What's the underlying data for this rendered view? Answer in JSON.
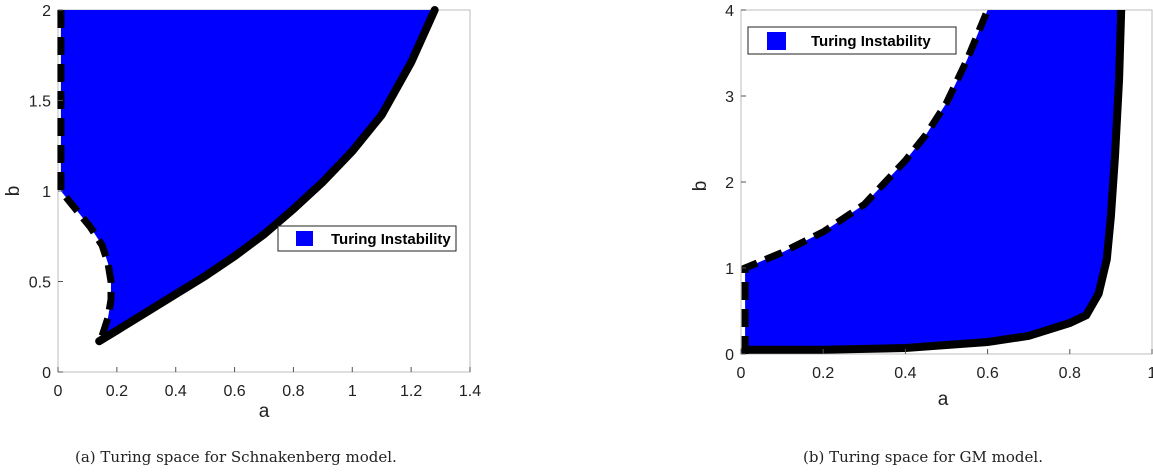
{
  "chart_data": [
    {
      "type": "area",
      "caption": "(a) Turing space for Schnakenberg model.",
      "xlabel": "a",
      "ylabel": "b",
      "xlim": [
        0,
        1.4
      ],
      "ylim": [
        0,
        2
      ],
      "x_ticks": [
        "0",
        "0.2",
        "0.4",
        "0.6",
        "0.8",
        "1",
        "1.2",
        "1.4"
      ],
      "y_ticks": [
        "0",
        "0.5",
        "1",
        "1.5",
        "2"
      ],
      "x_tick_values": [
        0,
        0.2,
        0.4,
        0.6,
        0.8,
        1.0,
        1.2,
        1.4
      ],
      "y_tick_values": [
        0,
        0.5,
        1.0,
        1.5,
        2.0
      ],
      "legend": {
        "label": "Turing Instability",
        "color": "#0000ff",
        "placement": "center-right"
      },
      "region_color": "#0000ff",
      "boundaries": [
        {
          "style": "dashed",
          "points": [
            [
              0.01,
              2.0
            ],
            [
              0.01,
              1.0
            ],
            [
              0.06,
              0.9
            ],
            [
              0.11,
              0.8
            ],
            [
              0.15,
              0.7
            ],
            [
              0.17,
              0.6
            ],
            [
              0.18,
              0.5
            ],
            [
              0.18,
              0.4
            ],
            [
              0.17,
              0.3
            ],
            [
              0.15,
              0.2
            ],
            [
              0.14,
              0.17
            ]
          ]
        },
        {
          "style": "solid",
          "points": [
            [
              0.14,
              0.17
            ],
            [
              0.2,
              0.23
            ],
            [
              0.3,
              0.33
            ],
            [
              0.4,
              0.43
            ],
            [
              0.5,
              0.53
            ],
            [
              0.6,
              0.64
            ],
            [
              0.7,
              0.76
            ],
            [
              0.8,
              0.9
            ],
            [
              0.9,
              1.05
            ],
            [
              1.0,
              1.22
            ],
            [
              1.1,
              1.42
            ],
            [
              1.2,
              1.71
            ],
            [
              1.28,
              2.0
            ]
          ]
        }
      ]
    },
    {
      "type": "area",
      "caption": "(b) Turing space for GM model.",
      "xlabel": "a",
      "ylabel": "b",
      "xlim": [
        0,
        1
      ],
      "ylim": [
        0,
        4
      ],
      "x_ticks": [
        "0",
        "0.2",
        "0.4",
        "0.6",
        "0.8",
        "1"
      ],
      "y_ticks": [
        "0",
        "1",
        "2",
        "3",
        "4"
      ],
      "x_tick_values": [
        0,
        0.2,
        0.4,
        0.6,
        0.8,
        1.0
      ],
      "y_tick_values": [
        0,
        1,
        2,
        3,
        4
      ],
      "legend": {
        "label": "Turing Instability",
        "color": "#0000ff",
        "placement": "top-left"
      },
      "region_color": "#0000ff",
      "boundaries": [
        {
          "style": "dashed",
          "points": [
            [
              0.01,
              0.0
            ],
            [
              0.01,
              1.0
            ],
            [
              0.1,
              1.18
            ],
            [
              0.2,
              1.42
            ],
            [
              0.3,
              1.74
            ],
            [
              0.4,
              2.25
            ],
            [
              0.45,
              2.55
            ],
            [
              0.5,
              2.92
            ],
            [
              0.55,
              3.42
            ],
            [
              0.6,
              4.0
            ]
          ]
        },
        {
          "style": "solid",
          "points": [
            [
              0.01,
              0.05
            ],
            [
              0.2,
              0.05
            ],
            [
              0.4,
              0.07
            ],
            [
              0.6,
              0.14
            ],
            [
              0.7,
              0.21
            ],
            [
              0.8,
              0.36
            ],
            [
              0.84,
              0.45
            ],
            [
              0.87,
              0.7
            ],
            [
              0.89,
              1.1
            ],
            [
              0.9,
              1.6
            ],
            [
              0.91,
              2.3
            ],
            [
              0.92,
              3.2
            ],
            [
              0.925,
              4.0
            ]
          ]
        }
      ]
    }
  ]
}
